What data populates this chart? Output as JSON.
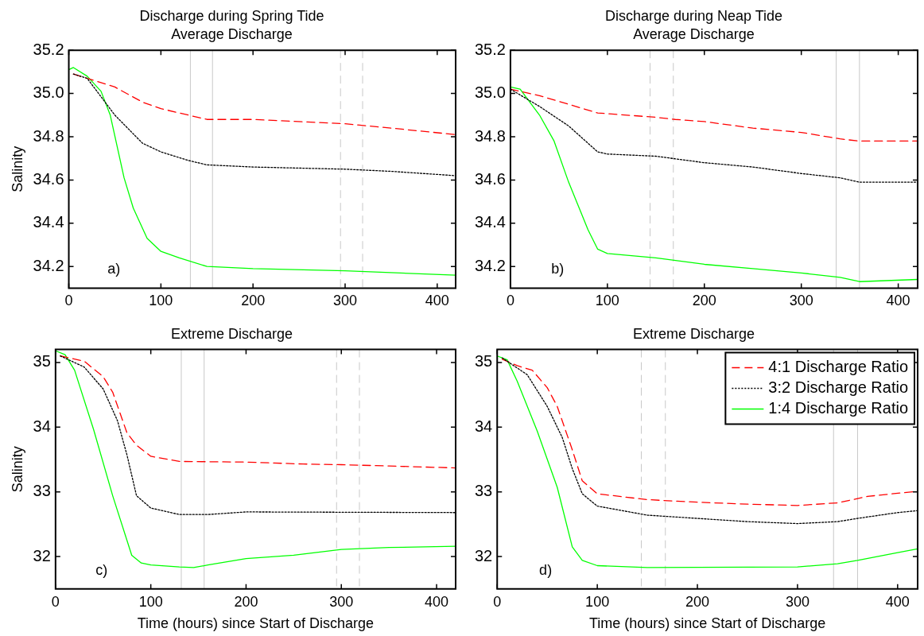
{
  "chart_data": [
    {
      "type": "line",
      "title": "Discharge during Spring Tide",
      "subtitle": "Average Discharge",
      "ylabel": "Salinity",
      "annotations": [
        "a)"
      ],
      "xlim": [
        0,
        420
      ],
      "xticks": [
        0,
        100,
        200,
        300,
        400
      ],
      "ylim": [
        34.1,
        35.2
      ],
      "yticks": [
        {
          "value": 34.2,
          "label": "34.2"
        },
        {
          "value": 34.4,
          "label": "34.4"
        },
        {
          "value": 34.6,
          "label": "34.6"
        },
        {
          "value": 34.8,
          "label": "34.8"
        },
        {
          "value": 35,
          "label": "35.0"
        },
        {
          "value": 35.2,
          "label": "35.2"
        }
      ],
      "legend": false,
      "ref_lines": [
        {
          "axis": "x",
          "value": 132,
          "color": "#c8c8c8",
          "line_style": "solid"
        },
        {
          "axis": "x",
          "value": 156,
          "color": "#c8c8c8",
          "line_style": "solid"
        },
        {
          "axis": "x",
          "value": 295,
          "color": "#c8c8c8",
          "line_style": "dashed"
        },
        {
          "axis": "x",
          "value": 319,
          "color": "#c8c8c8",
          "line_style": "dashed"
        }
      ],
      "series": [
        {
          "color": "#ff0000",
          "line_style": "dashed",
          "x": [
            5,
            50,
            80,
            100,
            120,
            150,
            200,
            300,
            350,
            420
          ],
          "values": [
            35.09,
            35.03,
            34.96,
            34.93,
            34.91,
            34.88,
            34.88,
            34.86,
            34.84,
            34.81
          ]
        },
        {
          "color": "#000000",
          "line_style": "dotted",
          "x": [
            5,
            20,
            50,
            80,
            100,
            130,
            150,
            200,
            300,
            350,
            420
          ],
          "values": [
            35.09,
            35.07,
            34.9,
            34.77,
            34.73,
            34.69,
            34.67,
            34.66,
            34.65,
            34.64,
            34.62
          ]
        },
        {
          "color": "#00ff00",
          "line_style": "solid",
          "x": [
            0,
            5,
            20,
            35,
            45,
            60,
            70,
            85,
            100,
            120,
            150,
            200,
            300,
            420
          ],
          "values": [
            35.11,
            35.12,
            35.08,
            35.01,
            34.9,
            34.61,
            34.47,
            34.33,
            34.27,
            34.24,
            34.2,
            34.19,
            34.18,
            34.16
          ]
        }
      ]
    },
    {
      "type": "line",
      "title": "Discharge during Neap Tide",
      "subtitle": "Average Discharge",
      "annotations": [
        "b)"
      ],
      "xlim": [
        0,
        420
      ],
      "xticks": [
        0,
        100,
        200,
        300,
        400
      ],
      "ylim": [
        34.1,
        35.2
      ],
      "yticks": [
        {
          "value": 34.2,
          "label": "34.2"
        },
        {
          "value": 34.4,
          "label": "34.4"
        },
        {
          "value": 34.6,
          "label": "34.6"
        },
        {
          "value": 34.8,
          "label": "34.8"
        },
        {
          "value": 35,
          "label": "35.0"
        },
        {
          "value": 35.2,
          "label": "35.2"
        }
      ],
      "legend": false,
      "ref_lines": [
        {
          "axis": "x",
          "value": 144,
          "color": "#c8c8c8",
          "line_style": "dashed"
        },
        {
          "axis": "x",
          "value": 168,
          "color": "#c8c8c8",
          "line_style": "dashed"
        },
        {
          "axis": "x",
          "value": 336,
          "color": "#c8c8c8",
          "line_style": "solid"
        },
        {
          "axis": "x",
          "value": 360,
          "color": "#c8c8c8",
          "line_style": "solid"
        }
      ],
      "series": [
        {
          "color": "#ff0000",
          "line_style": "dashed",
          "x": [
            0,
            30,
            60,
            90,
            120,
            150,
            170,
            200,
            250,
            300,
            340,
            360,
            380,
            420
          ],
          "values": [
            35.02,
            34.99,
            34.95,
            34.91,
            34.9,
            34.89,
            34.88,
            34.87,
            34.84,
            34.82,
            34.79,
            34.78,
            34.78,
            34.78
          ]
        },
        {
          "color": "#000000",
          "line_style": "dotted",
          "x": [
            0,
            30,
            60,
            90,
            100,
            150,
            200,
            250,
            300,
            340,
            360,
            420
          ],
          "values": [
            35.02,
            34.94,
            34.85,
            34.73,
            34.72,
            34.71,
            34.68,
            34.66,
            34.63,
            34.61,
            34.59,
            34.59
          ]
        },
        {
          "color": "#00ff00",
          "line_style": "solid",
          "x": [
            0,
            10,
            30,
            45,
            60,
            70,
            80,
            90,
            100,
            150,
            200,
            250,
            300,
            340,
            360,
            420
          ],
          "values": [
            35.03,
            35.02,
            34.9,
            34.78,
            34.59,
            34.48,
            34.37,
            34.28,
            34.26,
            34.24,
            34.21,
            34.19,
            34.17,
            34.15,
            34.13,
            34.14
          ]
        }
      ]
    },
    {
      "type": "line",
      "title": "Extreme Discharge",
      "xlabel": "Time (hours) since Start of Discharge",
      "ylabel": "Salinity",
      "annotations": [
        "c)"
      ],
      "xlim": [
        0,
        420
      ],
      "xticks": [
        0,
        100,
        200,
        300,
        400
      ],
      "ylim": [
        31.5,
        35.2
      ],
      "yticks": [
        32,
        33,
        34,
        35
      ],
      "legend": false,
      "ref_lines": [
        {
          "axis": "x",
          "value": 132,
          "color": "#c8c8c8",
          "line_style": "solid"
        },
        {
          "axis": "x",
          "value": 156,
          "color": "#c8c8c8",
          "line_style": "solid"
        },
        {
          "axis": "x",
          "value": 295,
          "color": "#c8c8c8",
          "line_style": "dashed"
        },
        {
          "axis": "x",
          "value": 319,
          "color": "#c8c8c8",
          "line_style": "dashed"
        }
      ],
      "series": [
        {
          "color": "#ff0000",
          "line_style": "dashed",
          "x": [
            5,
            30,
            50,
            60,
            75,
            85,
            100,
            130,
            200,
            260,
            300,
            350,
            420
          ],
          "values": [
            35.1,
            35.02,
            34.78,
            34.54,
            33.91,
            33.72,
            33.55,
            33.47,
            33.46,
            33.43,
            33.42,
            33.4,
            33.37
          ]
        },
        {
          "color": "#000000",
          "line_style": "dotted",
          "x": [
            5,
            30,
            50,
            65,
            75,
            85,
            100,
            130,
            160,
            200,
            420
          ],
          "values": [
            35.1,
            34.93,
            34.59,
            34.1,
            33.57,
            32.94,
            32.75,
            32.65,
            32.65,
            32.69,
            32.68
          ]
        },
        {
          "color": "#00ff00",
          "line_style": "solid",
          "x": [
            0,
            10,
            20,
            40,
            60,
            80,
            90,
            100,
            130,
            145,
            160,
            200,
            250,
            300,
            350,
            420
          ],
          "values": [
            35.18,
            35.12,
            34.88,
            33.96,
            32.94,
            32.02,
            31.9,
            31.87,
            31.84,
            31.83,
            31.87,
            31.97,
            32.02,
            32.11,
            32.14,
            32.16
          ]
        }
      ]
    },
    {
      "type": "line",
      "title": "Extreme Discharge",
      "xlabel": "Time (hours) since Start of Discharge",
      "annotations": [
        "d)"
      ],
      "xlim": [
        0,
        420
      ],
      "xticks": [
        0,
        100,
        200,
        300,
        400
      ],
      "ylim": [
        31.5,
        35.2
      ],
      "yticks": [
        32,
        33,
        34,
        35
      ],
      "legend": "top right",
      "ref_lines": [
        {
          "axis": "x",
          "value": 144,
          "color": "#c8c8c8",
          "line_style": "dashed"
        },
        {
          "axis": "x",
          "value": 168,
          "color": "#c8c8c8",
          "line_style": "dashed"
        },
        {
          "axis": "x",
          "value": 336,
          "color": "#c8c8c8",
          "line_style": "solid"
        },
        {
          "axis": "x",
          "value": 360,
          "color": "#c8c8c8",
          "line_style": "solid"
        }
      ],
      "series": [
        {
          "name": "4:1 Discharge Ratio",
          "color": "#ff0000",
          "line_style": "dashed",
          "x": [
            5,
            20,
            35,
            50,
            60,
            75,
            85,
            100,
            150,
            200,
            250,
            300,
            340,
            370,
            420
          ],
          "values": [
            35.05,
            34.95,
            34.88,
            34.61,
            34.32,
            33.65,
            33.17,
            32.97,
            32.88,
            32.84,
            32.81,
            32.79,
            32.83,
            32.93,
            33.01
          ]
        },
        {
          "name": "3:2 Discharge Ratio",
          "color": "#000000",
          "line_style": "dotted",
          "x": [
            5,
            30,
            50,
            65,
            75,
            85,
            100,
            150,
            200,
            250,
            300,
            340,
            360,
            400,
            420
          ],
          "values": [
            35.07,
            34.81,
            34.32,
            33.84,
            33.36,
            32.97,
            32.78,
            32.64,
            32.59,
            32.54,
            32.51,
            32.54,
            32.59,
            32.68,
            32.71
          ]
        },
        {
          "name": "1:4 Discharge Ratio",
          "color": "#00ff00",
          "line_style": "solid",
          "x": [
            0,
            10,
            20,
            40,
            60,
            75,
            85,
            100,
            150,
            300,
            340,
            360,
            400,
            420
          ],
          "values": [
            35.1,
            35.04,
            34.71,
            33.94,
            33.07,
            32.15,
            31.94,
            31.86,
            31.83,
            31.84,
            31.89,
            31.94,
            32.06,
            32.12
          ]
        }
      ]
    }
  ]
}
